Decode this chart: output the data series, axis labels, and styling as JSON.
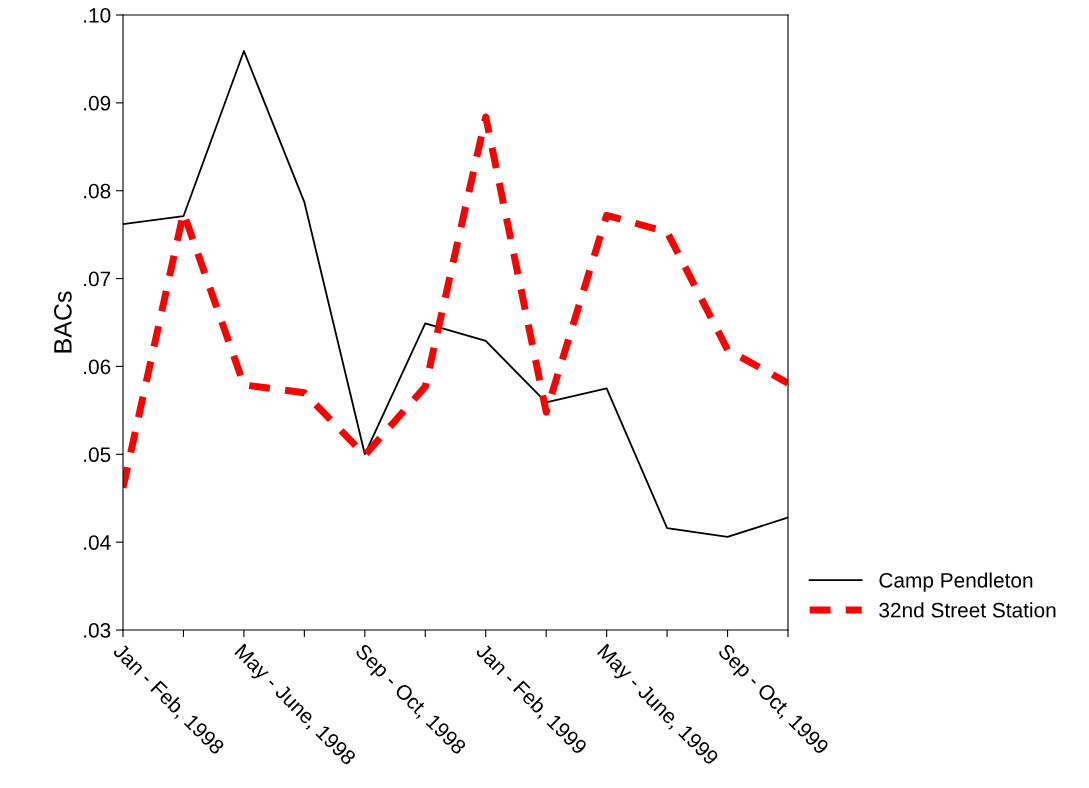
{
  "chart_data": {
    "type": "line",
    "ylabel": "BACs",
    "categories": [
      "Jan - Feb, 1998",
      null,
      "May - June, 1998",
      null,
      "Sep - Oct, 1998",
      null,
      "Jan - Feb, 1999",
      null,
      "May - June, 1999",
      null,
      "Sep - Oct, 1999",
      null
    ],
    "series": [
      {
        "name": "Camp Pendleton",
        "color": "#000000",
        "line_style": "solid",
        "values": [
          0.0762,
          0.0771,
          0.0959,
          0.0787,
          0.05,
          0.0649,
          0.0629,
          0.0559,
          0.0575,
          0.0416,
          0.0406,
          0.0428
        ]
      },
      {
        "name": "32nd Street Station",
        "color": "#ff0000",
        "line_style": "dashed",
        "values": [
          0.0462,
          0.0775,
          0.0579,
          0.057,
          0.0499,
          0.0577,
          0.0884,
          0.0548,
          0.0772,
          0.0753,
          0.0619,
          0.0581
        ]
      }
    ],
    "ylim": [
      0.03,
      0.1
    ],
    "yticks": [
      {
        "value": 0.03,
        "label": ".03"
      },
      {
        "value": 0.04,
        "label": ".04"
      },
      {
        "value": 0.05,
        "label": ".05"
      },
      {
        "value": 0.06,
        "label": ".06"
      },
      {
        "value": 0.07,
        "label": ".07"
      },
      {
        "value": 0.08,
        "label": ".08"
      },
      {
        "value": 0.09,
        "label": ".09"
      },
      {
        "value": 0.1,
        "label": ".10"
      }
    ],
    "grid": false,
    "legend": "bottom right",
    "marker": "none"
  }
}
